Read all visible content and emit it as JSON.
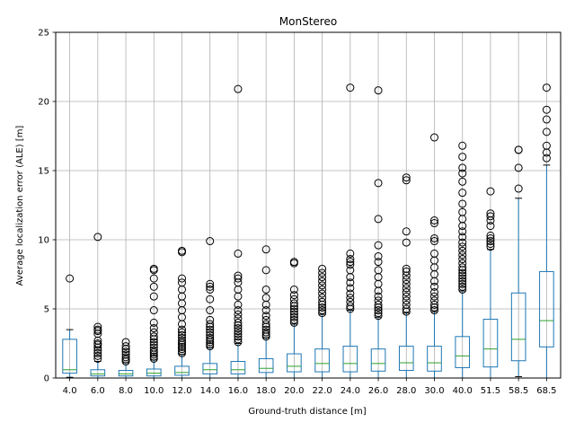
{
  "chart_data": {
    "type": "boxplot",
    "title": "MonStereo",
    "xlabel": "Ground-truth distance [m]",
    "ylabel": "Average localization error (ALE) [m]",
    "ylim": [
      0,
      25
    ],
    "yticks": [
      0,
      5,
      10,
      15,
      20,
      25
    ],
    "grid": true,
    "colors": {
      "box": "#1f77b4",
      "median": "#2ca02c",
      "whisker": "#000000",
      "grid": "#b0b0b0",
      "outlier": "#000000"
    },
    "categories": [
      "4.0",
      "6.0",
      "8.0",
      "10.0",
      "12.0",
      "14.0",
      "16.0",
      "18.0",
      "20.0",
      "22.0",
      "24.0",
      "26.0",
      "28.0",
      "30.0",
      "40.0",
      "51.5",
      "58.5",
      "68.5"
    ],
    "boxes": [
      {
        "q1": 0.35,
        "median": 0.6,
        "q3": 2.8,
        "whisker_low": 0.05,
        "whisker_high": 3.5,
        "outliers": [
          7.2
        ]
      },
      {
        "q1": 0.15,
        "median": 0.3,
        "q3": 0.6,
        "whisker_low": 0.0,
        "whisker_high": 1.2,
        "outliers": [
          1.4,
          1.6,
          1.8,
          2.0,
          2.2,
          2.4,
          2.5,
          2.7,
          3.2,
          3.4,
          3.5,
          3.7,
          10.2
        ]
      },
      {
        "q1": 0.15,
        "median": 0.3,
        "q3": 0.55,
        "whisker_low": 0.0,
        "whisker_high": 1.1,
        "outliers": [
          1.2,
          1.35,
          1.5,
          1.7,
          1.9,
          2.1,
          2.3,
          2.6
        ]
      },
      {
        "q1": 0.15,
        "median": 0.35,
        "q3": 0.65,
        "whisker_low": 0.0,
        "whisker_high": 1.3,
        "outliers": [
          1.4,
          1.55,
          1.7,
          1.85,
          2.0,
          2.2,
          2.4,
          2.6,
          2.8,
          3.0,
          3.3,
          3.6,
          4.0,
          4.9,
          5.9,
          6.6,
          7.2,
          7.8,
          7.9
        ]
      },
      {
        "q1": 0.2,
        "median": 0.4,
        "q3": 0.85,
        "whisker_low": 0.0,
        "whisker_high": 1.7,
        "outliers": [
          1.8,
          1.95,
          2.1,
          2.25,
          2.4,
          2.55,
          2.7,
          2.9,
          3.1,
          3.3,
          3.5,
          3.9,
          4.4,
          4.9,
          5.4,
          5.9,
          6.4,
          6.9,
          7.2,
          9.1,
          9.2
        ]
      },
      {
        "q1": 0.3,
        "median": 0.6,
        "q3": 1.05,
        "whisker_low": 0.0,
        "whisker_high": 2.2,
        "outliers": [
          2.3,
          2.45,
          2.6,
          2.75,
          2.9,
          3.1,
          3.3,
          3.5,
          3.7,
          3.9,
          4.2,
          4.9,
          5.7,
          6.4,
          6.6,
          6.8,
          9.9
        ]
      },
      {
        "q1": 0.3,
        "median": 0.6,
        "q3": 1.2,
        "whisker_low": 0.0,
        "whisker_high": 2.5,
        "outliers": [
          2.6,
          2.8,
          3.0,
          3.2,
          3.4,
          3.6,
          3.8,
          4.0,
          4.3,
          4.6,
          4.9,
          5.3,
          5.9,
          6.4,
          6.9,
          7.2,
          7.4,
          9.0,
          20.9
        ]
      },
      {
        "q1": 0.4,
        "median": 0.7,
        "q3": 1.4,
        "whisker_low": 0.0,
        "whisker_high": 2.9,
        "outliers": [
          3.0,
          3.15,
          3.3,
          3.5,
          3.7,
          3.9,
          4.2,
          4.5,
          4.9,
          5.3,
          5.8,
          6.4,
          7.8,
          9.3
        ]
      },
      {
        "q1": 0.45,
        "median": 0.85,
        "q3": 1.75,
        "whisker_low": 0.0,
        "whisker_high": 3.9,
        "outliers": [
          4.0,
          4.2,
          4.4,
          4.6,
          4.8,
          5.0,
          5.2,
          5.4,
          5.7,
          6.0,
          6.4,
          8.3,
          8.4
        ]
      },
      {
        "q1": 0.45,
        "median": 1.05,
        "q3": 2.1,
        "whisker_low": 0.0,
        "whisker_high": 4.6,
        "outliers": [
          4.7,
          4.9,
          5.1,
          5.3,
          5.5,
          5.8,
          6.1,
          6.4,
          6.7,
          7.0,
          7.3,
          7.6,
          7.9
        ]
      },
      {
        "q1": 0.45,
        "median": 1.05,
        "q3": 2.3,
        "whisker_low": 0.0,
        "whisker_high": 4.9,
        "outliers": [
          5.0,
          5.2,
          5.5,
          5.8,
          6.1,
          6.5,
          6.9,
          7.3,
          7.8,
          8.2,
          8.4,
          8.6,
          9.0,
          21.0
        ]
      },
      {
        "q1": 0.5,
        "median": 1.05,
        "q3": 2.1,
        "whisker_low": 0.0,
        "whisker_high": 4.4,
        "outliers": [
          4.5,
          4.7,
          4.9,
          5.1,
          5.3,
          5.6,
          5.9,
          6.3,
          6.8,
          7.3,
          7.8,
          8.4,
          8.8,
          9.6,
          11.5,
          14.1,
          20.8
        ]
      },
      {
        "q1": 0.55,
        "median": 1.1,
        "q3": 2.3,
        "whisker_low": 0.0,
        "whisker_high": 4.7,
        "outliers": [
          4.8,
          5.0,
          5.3,
          5.6,
          5.9,
          6.2,
          6.5,
          6.8,
          7.1,
          7.4,
          7.7,
          7.9,
          9.8,
          10.6,
          14.3,
          14.5
        ]
      },
      {
        "q1": 0.5,
        "median": 1.1,
        "q3": 2.3,
        "whisker_low": 0.0,
        "whisker_high": 4.8,
        "outliers": [
          4.9,
          5.1,
          5.3,
          5.6,
          5.9,
          6.2,
          6.6,
          7.0,
          7.5,
          8.0,
          8.5,
          9.0,
          9.9,
          10.1,
          11.2,
          11.4,
          17.4
        ]
      },
      {
        "q1": 0.75,
        "median": 1.6,
        "q3": 3.0,
        "whisker_low": 0.0,
        "whisker_high": 6.3,
        "outliers": [
          6.4,
          6.6,
          6.8,
          7.0,
          7.2,
          7.4,
          7.6,
          7.8,
          8.0,
          8.3,
          8.6,
          8.9,
          9.2,
          9.5,
          9.8,
          10.2,
          10.6,
          11.0,
          11.5,
          12.0,
          12.6,
          13.4,
          14.2,
          14.8,
          15.2,
          16.0,
          16.8
        ]
      },
      {
        "q1": 0.8,
        "median": 2.1,
        "q3": 4.25,
        "whisker_low": 0.0,
        "whisker_high": 9.3,
        "outliers": [
          9.5,
          9.7,
          9.9,
          10.1,
          10.3,
          11.0,
          11.4,
          11.7,
          11.9,
          13.5
        ]
      },
      {
        "q1": 1.25,
        "median": 2.8,
        "q3": 6.15,
        "whisker_low": 0.1,
        "whisker_high": 13.0,
        "outliers": [
          13.7,
          15.2,
          16.5,
          16.5
        ]
      },
      {
        "q1": 2.25,
        "median": 4.15,
        "q3": 7.7,
        "whisker_low": 0.0,
        "whisker_high": 15.4,
        "outliers": [
          15.9,
          16.3,
          16.8,
          17.8,
          18.7,
          19.4,
          21.0
        ]
      }
    ]
  }
}
